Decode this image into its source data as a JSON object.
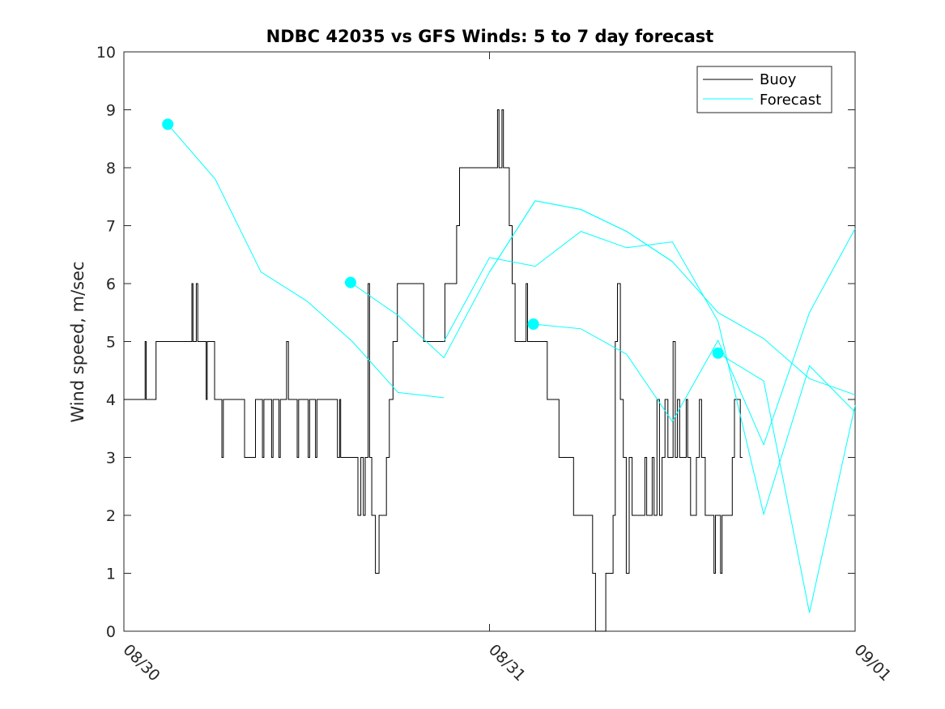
{
  "chart_data": {
    "type": "line",
    "title": "NDBC 42035 vs GFS Winds: 5 to 7 day forecast",
    "xlabel": "",
    "ylabel": "Wind speed, m/sec",
    "xlim": [
      0,
      2
    ],
    "ylim": [
      0,
      10
    ],
    "yticks": [
      0,
      1,
      2,
      3,
      4,
      5,
      6,
      7,
      8,
      9,
      10
    ],
    "xticks": [
      {
        "x": 0,
        "label": "08/30"
      },
      {
        "x": 1,
        "label": "08/31"
      },
      {
        "x": 2,
        "label": "09/01"
      }
    ],
    "legend": {
      "position": "top-right",
      "entries": [
        "Buoy",
        "Forecast"
      ]
    },
    "colors": {
      "buoy": "#000000",
      "forecast": "#00ffff",
      "axis": "#262626"
    },
    "buoy": {
      "name": "Buoy",
      "steps": [
        [
          0.0,
          4
        ],
        [
          0.055,
          4
        ],
        [
          0.058,
          5
        ],
        [
          0.061,
          4
        ],
        [
          0.083,
          4
        ],
        [
          0.088,
          5
        ],
        [
          0.183,
          5
        ],
        [
          0.186,
          6
        ],
        [
          0.189,
          5
        ],
        [
          0.194,
          5
        ],
        [
          0.198,
          6
        ],
        [
          0.202,
          5
        ],
        [
          0.222,
          5
        ],
        [
          0.225,
          4
        ],
        [
          0.228,
          5
        ],
        [
          0.242,
          5
        ],
        [
          0.248,
          4
        ],
        [
          0.265,
          4
        ],
        [
          0.268,
          3
        ],
        [
          0.272,
          4
        ],
        [
          0.325,
          4
        ],
        [
          0.33,
          3
        ],
        [
          0.355,
          3
        ],
        [
          0.36,
          4
        ],
        [
          0.375,
          4
        ],
        [
          0.379,
          3
        ],
        [
          0.383,
          4
        ],
        [
          0.4,
          4
        ],
        [
          0.404,
          3
        ],
        [
          0.408,
          4
        ],
        [
          0.42,
          4
        ],
        [
          0.424,
          3
        ],
        [
          0.428,
          4
        ],
        [
          0.44,
          4
        ],
        [
          0.445,
          5
        ],
        [
          0.45,
          4
        ],
        [
          0.47,
          4
        ],
        [
          0.474,
          3
        ],
        [
          0.478,
          4
        ],
        [
          0.5,
          4
        ],
        [
          0.504,
          3
        ],
        [
          0.508,
          4
        ],
        [
          0.52,
          4
        ],
        [
          0.524,
          3
        ],
        [
          0.528,
          4
        ],
        [
          0.58,
          4
        ],
        [
          0.584,
          3
        ],
        [
          0.59,
          4
        ],
        [
          0.593,
          3
        ],
        [
          0.636,
          3
        ],
        [
          0.64,
          2
        ],
        [
          0.648,
          3
        ],
        [
          0.655,
          2
        ],
        [
          0.66,
          3
        ],
        [
          0.668,
          6
        ],
        [
          0.672,
          3
        ],
        [
          0.678,
          2
        ],
        [
          0.688,
          1
        ],
        [
          0.698,
          2
        ],
        [
          0.708,
          2
        ],
        [
          0.718,
          3
        ],
        [
          0.726,
          4
        ],
        [
          0.736,
          5
        ],
        [
          0.748,
          6
        ],
        [
          0.812,
          6
        ],
        [
          0.82,
          5
        ],
        [
          0.87,
          5
        ],
        [
          0.878,
          6
        ],
        [
          0.905,
          6
        ],
        [
          0.91,
          7
        ],
        [
          0.918,
          8
        ],
        [
          1.018,
          8
        ],
        [
          1.022,
          9
        ],
        [
          1.026,
          8
        ],
        [
          1.034,
          9
        ],
        [
          1.038,
          8
        ],
        [
          1.046,
          8
        ],
        [
          1.054,
          7
        ],
        [
          1.062,
          6
        ],
        [
          1.07,
          5
        ],
        [
          1.095,
          5
        ],
        [
          1.1,
          6
        ],
        [
          1.104,
          5
        ],
        [
          1.15,
          5
        ],
        [
          1.158,
          4
        ],
        [
          1.182,
          4
        ],
        [
          1.19,
          3
        ],
        [
          1.222,
          3
        ],
        [
          1.23,
          2
        ],
        [
          1.278,
          2
        ],
        [
          1.282,
          1
        ],
        [
          1.29,
          0
        ],
        [
          1.314,
          0
        ],
        [
          1.318,
          1
        ],
        [
          1.33,
          1
        ],
        [
          1.338,
          2
        ],
        [
          1.344,
          5
        ],
        [
          1.35,
          6
        ],
        [
          1.358,
          4
        ],
        [
          1.366,
          3
        ],
        [
          1.374,
          1
        ],
        [
          1.382,
          3
        ],
        [
          1.39,
          2
        ],
        [
          1.42,
          2
        ],
        [
          1.425,
          3
        ],
        [
          1.43,
          2
        ],
        [
          1.44,
          2
        ],
        [
          1.445,
          3
        ],
        [
          1.45,
          2
        ],
        [
          1.458,
          4
        ],
        [
          1.465,
          2
        ],
        [
          1.472,
          3
        ],
        [
          1.48,
          4
        ],
        [
          1.488,
          3
        ],
        [
          1.495,
          3
        ],
        [
          1.502,
          5
        ],
        [
          1.508,
          3
        ],
        [
          1.514,
          4
        ],
        [
          1.52,
          3
        ],
        [
          1.528,
          3
        ],
        [
          1.538,
          4
        ],
        [
          1.542,
          3
        ],
        [
          1.55,
          2
        ],
        [
          1.56,
          2
        ],
        [
          1.566,
          3
        ],
        [
          1.574,
          4
        ],
        [
          1.58,
          3
        ],
        [
          1.59,
          2
        ],
        [
          1.61,
          2
        ],
        [
          1.614,
          1
        ],
        [
          1.618,
          2
        ],
        [
          1.628,
          2
        ],
        [
          1.632,
          1
        ],
        [
          1.636,
          2
        ],
        [
          1.65,
          2
        ],
        [
          1.66,
          2
        ],
        [
          1.664,
          3
        ],
        [
          1.67,
          4
        ],
        [
          1.68,
          4
        ],
        [
          1.686,
          3
        ],
        [
          1.692,
          3
        ]
      ]
    },
    "forecast": {
      "name": "Forecast",
      "series": [
        {
          "x": [
            0.12,
            0.25,
            0.375,
            0.5,
            0.625,
            0.75,
            0.875
          ],
          "y": [
            8.75,
            7.8,
            6.2,
            5.7,
            5.0,
            4.12,
            4.03
          ]
        },
        {
          "x": [
            0.62,
            0.75,
            0.875,
            1.0,
            1.125,
            1.25,
            1.375,
            1.5
          ],
          "y": [
            6.02,
            5.45,
            4.72,
            6.2,
            7.43,
            7.28,
            6.9,
            6.38
          ]
        },
        {
          "x": [
            1.12,
            1.25,
            1.375,
            1.5,
            1.625,
            1.75,
            1.875,
            2.0
          ],
          "y": [
            5.3,
            5.22,
            4.78,
            3.62,
            5.02,
            3.22,
            5.5,
            6.95
          ]
        },
        {
          "x": [
            1.625,
            1.75,
            1.875,
            2.0
          ],
          "y": [
            4.8,
            4.32,
            0.32,
            3.9
          ]
        },
        {
          "x": [
            0.875,
            1.0,
            1.125,
            1.25,
            1.375,
            1.5,
            1.625,
            1.75,
            1.875,
            2.0
          ],
          "y": [
            5.0,
            6.45,
            6.3,
            6.9,
            6.62,
            6.72,
            5.35,
            2.02,
            4.58,
            3.78
          ]
        },
        {
          "x": [
            1.0,
            1.125,
            1.25,
            1.375,
            1.5,
            1.625,
            1.75,
            1.875,
            2.0
          ],
          "y": [
            6.2,
            7.43,
            7.28,
            6.9,
            6.38,
            5.5,
            5.05,
            4.36,
            4.08
          ]
        }
      ],
      "start_markers": [
        {
          "x": 0.12,
          "y": 8.75
        },
        {
          "x": 0.62,
          "y": 6.02
        },
        {
          "x": 1.12,
          "y": 5.3
        },
        {
          "x": 1.625,
          "y": 4.8
        }
      ]
    }
  }
}
